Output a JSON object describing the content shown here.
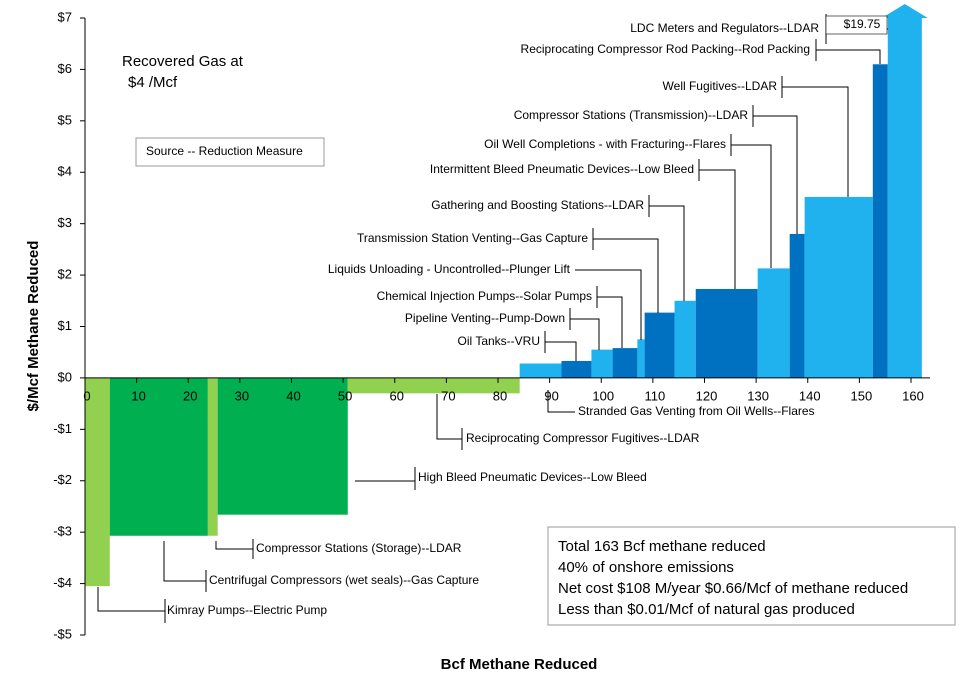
{
  "chart_data": {
    "type": "mac",
    "x_label": "Bcf Methane Reduced",
    "y_label": "$/Mcf Methane Reduced",
    "categories": [
      "Kimray Pumps--Electric Pump",
      "Centrifugal Compressors (wet seals)--Gas Capture",
      "Compressor Stations (Storage)--LDAR",
      "High Bleed Pneumatic Devices--Low Bleed",
      "Reciprocating Compressor Fugitives--LDAR",
      "Stranded Gas Venting from Oil Wells--Flares",
      "Oil Tanks--VRU",
      "Pipeline Venting--Pump-Down",
      "Chemical Injection Pumps--Solar Pumps",
      "Liquids Unloading - Uncontrolled--Plunger Lift",
      "Transmission Station Venting--Gas Capture",
      "Gathering and Boosting Stations--LDAR",
      "Intermittent Bleed Pneumatic Devices--Low Bleed",
      "Oil Well Completions - with Fracturing--Flares",
      "Compressor Stations (Transmission)--LDAR",
      "Well Fugitives--LDAR",
      "Reciprocating Compressor Rod Packing--Rod Packing",
      "LDC Meters and Regulators--LDAR"
    ],
    "widths": [
      4.8,
      19.0,
      1.9,
      25.2,
      33.3,
      8.1,
      5.8,
      4.1,
      4.8,
      1.4,
      5.8,
      4.1,
      12.0,
      6.2,
      2.9,
      13.2,
      2.9,
      6.6
    ],
    "values": [
      -4.05,
      -3.07,
      -3.07,
      -2.66,
      -0.3,
      0.28,
      0.33,
      0.55,
      0.58,
      0.75,
      1.27,
      1.5,
      1.73,
      2.13,
      2.8,
      3.52,
      6.1,
      19.75
    ],
    "value_labels": [
      null,
      null,
      null,
      null,
      null,
      null,
      null,
      null,
      null,
      null,
      null,
      null,
      null,
      null,
      null,
      null,
      null,
      "$19.75"
    ],
    "colors": [
      "#92d050",
      "#00b050",
      "#92d050",
      "#00b050",
      "#92d050",
      "#1fb2ef",
      "#0070c0",
      "#1fb2ef",
      "#0070c0",
      "#1fb2ef",
      "#0070c0",
      "#1fb2ef",
      "#0070c0",
      "#1fb2ef",
      "#0070c0",
      "#1fb2ef",
      "#0070c0",
      "#1fb2ef"
    ],
    "xlim": [
      0,
      160
    ],
    "xticks": [
      0,
      10,
      20,
      30,
      40,
      50,
      60,
      70,
      80,
      90,
      100,
      110,
      120,
      130,
      140,
      150,
      160
    ],
    "ylim": [
      -5,
      7
    ],
    "yticks": [
      {
        "value": -5,
        "label": "-$5"
      },
      {
        "value": -4,
        "label": "-$4"
      },
      {
        "value": -3,
        "label": "-$3"
      },
      {
        "value": -2,
        "label": "-$2"
      },
      {
        "value": -1,
        "label": "-$1"
      },
      {
        "value": 0,
        "label": "$0"
      },
      {
        "value": 1,
        "label": "$1"
      },
      {
        "value": 2,
        "label": "$2"
      },
      {
        "value": 3,
        "label": "$3"
      },
      {
        "value": 4,
        "label": "$4"
      },
      {
        "value": 5,
        "label": "$5"
      },
      {
        "value": 6,
        "label": "$6"
      },
      {
        "value": 7,
        "label": "$7"
      }
    ],
    "notes": [
      "Recovered Gas at",
      "$4 /Mcf"
    ],
    "key_note": "Source -- Reduction Measure",
    "summary": [
      "Total 163 Bcf methane reduced",
      "40% of onshore emissions",
      "Net cost $108 M/year    $0.66/Mcf of methane reduced",
      "Less than $0.01/Mcf of natural gas produced"
    ]
  }
}
